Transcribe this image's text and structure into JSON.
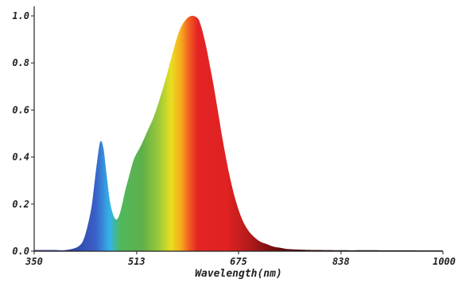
{
  "chart_data": {
    "type": "area",
    "title": "",
    "xlabel": "Wavelength(nm)",
    "ylabel": "",
    "xlim": [
      350,
      1000
    ],
    "ylim": [
      0,
      1.05
    ],
    "x_ticks": [
      350,
      513,
      675,
      838,
      1000
    ],
    "x_tick_labels": [
      "350",
      "513",
      "675",
      "838",
      "1000"
    ],
    "y_ticks": [
      0,
      0.2,
      0.4,
      0.6,
      0.8,
      1.0
    ],
    "y_tick_labels": [
      "0.0",
      "0.2",
      "0.4",
      "0.6",
      "0.8",
      "1.0"
    ],
    "grid": false,
    "fill": "visible-spectrum-gradient",
    "series": [
      {
        "x": [
          350,
          380,
          400,
          420,
          430,
          440,
          445,
          450,
          455,
          460,
          465,
          470,
          475,
          480,
          485,
          490,
          495,
          500,
          505,
          510,
          520,
          530,
          540,
          550,
          560,
          570,
          580,
          590,
          600,
          610,
          615,
          620,
          625,
          630,
          635,
          640,
          645,
          650,
          660,
          670,
          680,
          690,
          700,
          710,
          720,
          730,
          740,
          750,
          760,
          780,
          800,
          850,
          900,
          1000
        ],
        "y": [
          0.005,
          0.005,
          0.005,
          0.02,
          0.06,
          0.17,
          0.27,
          0.38,
          0.465,
          0.44,
          0.33,
          0.22,
          0.16,
          0.135,
          0.15,
          0.2,
          0.26,
          0.31,
          0.36,
          0.4,
          0.45,
          0.51,
          0.57,
          0.65,
          0.74,
          0.84,
          0.93,
          0.98,
          1.0,
          0.99,
          0.96,
          0.91,
          0.85,
          0.78,
          0.71,
          0.63,
          0.55,
          0.47,
          0.33,
          0.22,
          0.14,
          0.09,
          0.06,
          0.04,
          0.03,
          0.02,
          0.015,
          0.01,
          0.008,
          0.006,
          0.005,
          0.004,
          0.004,
          0.003
        ]
      }
    ]
  }
}
